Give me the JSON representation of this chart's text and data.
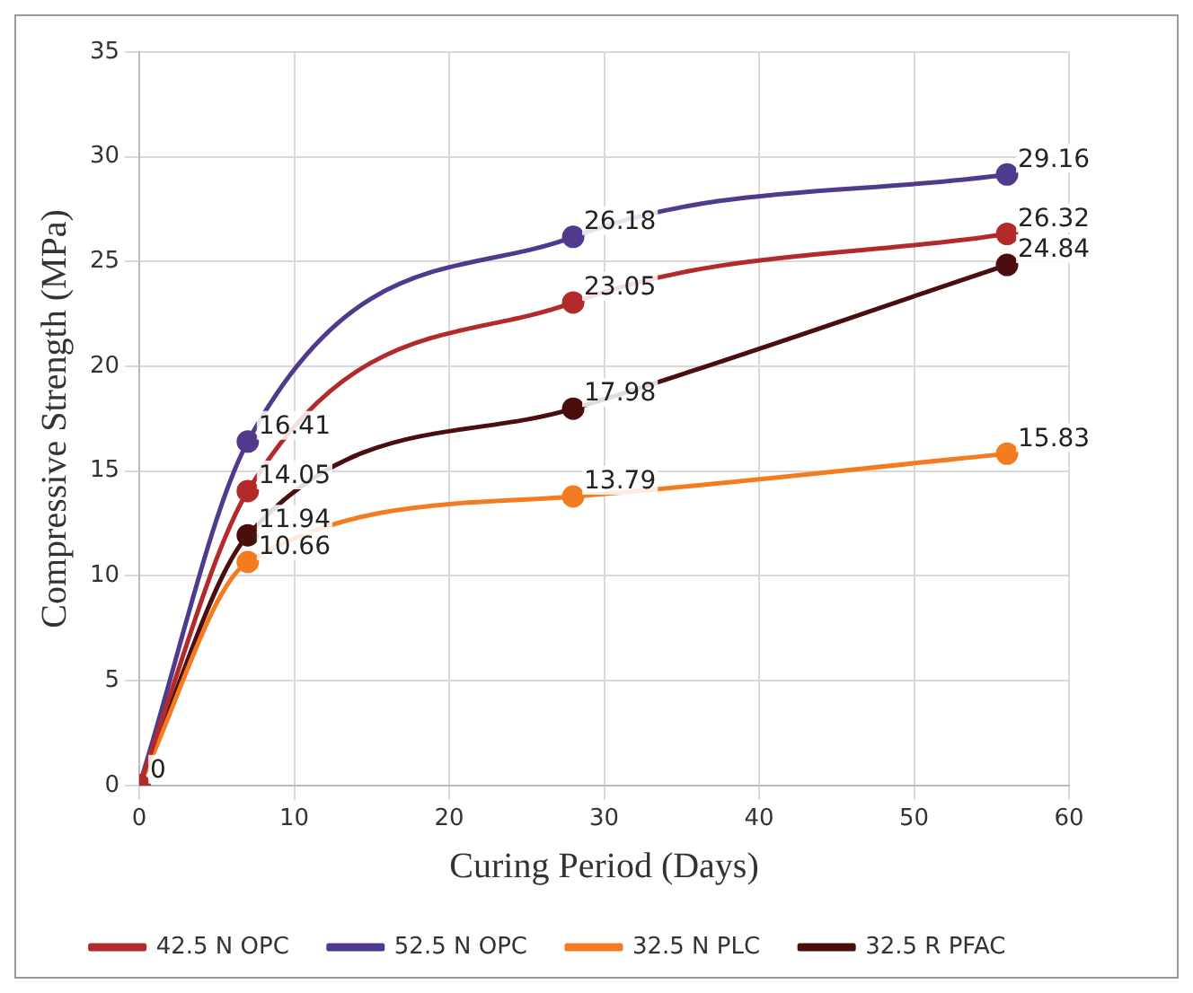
{
  "chart_data": {
    "type": "line",
    "xlabel": "Curing Period (Days)",
    "ylabel": "Compressive Strength (MPa)",
    "x": [
      0,
      7,
      28,
      56
    ],
    "xlim": [
      0,
      60
    ],
    "xticks": [
      0,
      10,
      20,
      30,
      40,
      50,
      60
    ],
    "ylim": [
      0,
      35
    ],
    "yticks": [
      0,
      5,
      10,
      15,
      20,
      25,
      30,
      35
    ],
    "grid": true,
    "legend": "bottom",
    "marker": "circle",
    "line_style": "solid",
    "series": [
      {
        "name": "42.5 N OPC",
        "color": "#b22a2a",
        "values": [
          0,
          14.05,
          23.05,
          26.32
        ],
        "value_labels": [
          "0",
          "14.05",
          "23.05",
          "26.32"
        ]
      },
      {
        "name": "52.5 N OPC",
        "color": "#4f3a8e",
        "values": [
          0,
          16.41,
          26.18,
          29.16
        ],
        "value_labels": [
          null,
          "16.41",
          "26.18",
          "29.16"
        ]
      },
      {
        "name": "32.5 N PLC",
        "color": "#f47c20",
        "values": [
          0,
          10.66,
          13.79,
          15.83
        ],
        "value_labels": [
          null,
          "10.66",
          "13.79",
          "15.83"
        ]
      },
      {
        "name": "32.5 R PFAC",
        "color": "#4a0e0e",
        "values": [
          0,
          11.94,
          17.98,
          24.84
        ],
        "value_labels": [
          null,
          "11.94",
          "17.98",
          "24.84"
        ]
      }
    ]
  }
}
